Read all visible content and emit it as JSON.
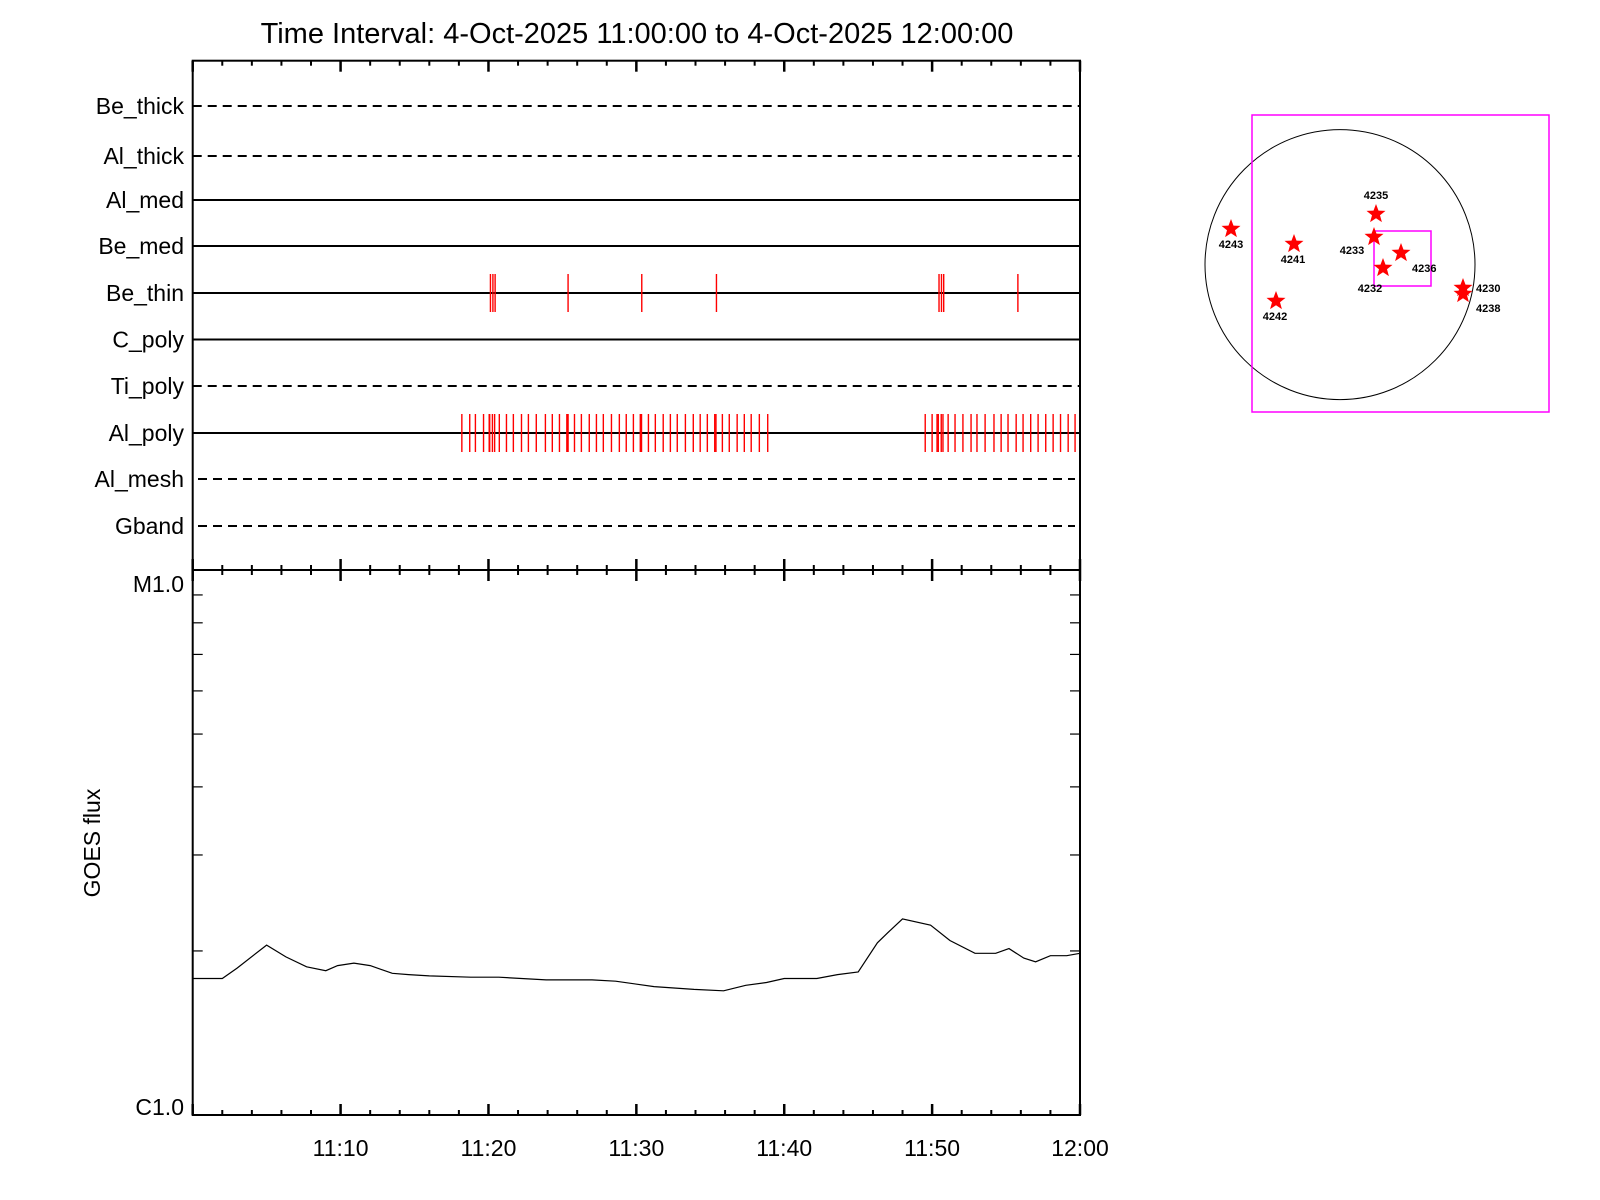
{
  "chart_data": [
    {
      "type": "event-timeline",
      "title": "Time Interval:  4-Oct-2025 11:00:00 to  4-Oct-2025 12:00:00",
      "xlim": [
        "11:00:00",
        "12:00:00"
      ],
      "event_color": "#ff0000",
      "rows": [
        {
          "name": "Be_thick",
          "style": "dashed",
          "events": []
        },
        {
          "name": "Al_thick",
          "style": "dashed",
          "events": []
        },
        {
          "name": "Al_med",
          "style": "solid",
          "events": []
        },
        {
          "name": "Be_med",
          "style": "solid",
          "events": []
        },
        {
          "name": "Be_thin",
          "style": "solid",
          "events": [
            "11:20:08",
            "11:20:18",
            "11:20:27",
            "11:25:23",
            "11:30:22",
            "11:35:25",
            "11:50:28",
            "11:50:38",
            "11:50:47",
            "11:55:48"
          ]
        },
        {
          "name": "C_poly",
          "style": "solid",
          "events": []
        },
        {
          "name": "Ti_poly",
          "style": "dashed",
          "events": []
        },
        {
          "name": "Al_poly",
          "style": "solid",
          "events": [
            "11:18:12",
            "11:18:44",
            "11:19:07",
            "11:19:40",
            "11:20:03",
            "11:20:05",
            "11:20:16",
            "11:20:25",
            "11:20:44",
            "11:21:13",
            "11:21:41",
            "11:22:14",
            "11:22:42",
            "11:23:14",
            "11:23:51",
            "11:24:19",
            "11:24:48",
            "11:25:18",
            "11:25:23",
            "11:25:49",
            "11:26:17",
            "11:26:49",
            "11:27:18",
            "11:27:46",
            "11:28:19",
            "11:28:51",
            "11:29:19",
            "11:29:48",
            "11:30:16",
            "11:30:21",
            "11:30:49",
            "11:31:17",
            "11:31:49",
            "11:32:18",
            "11:32:46",
            "11:33:19",
            "11:33:51",
            "11:34:19",
            "11:34:48",
            "11:35:18",
            "11:35:23",
            "11:35:49",
            "11:36:17",
            "11:36:49",
            "11:37:18",
            "11:37:46",
            "11:38:19",
            "11:38:53",
            "11:49:32",
            "11:50:00",
            "11:50:20",
            "11:50:25",
            "11:50:37",
            "11:50:44",
            "11:51:05",
            "11:51:33",
            "11:52:05",
            "11:52:38",
            "11:53:02",
            "11:53:35",
            "11:54:11",
            "11:54:40",
            "11:55:08",
            "11:55:41",
            "11:56:09",
            "11:56:40",
            "11:57:10",
            "11:57:41",
            "11:58:11",
            "11:58:41",
            "11:59:12",
            "11:59:40"
          ]
        },
        {
          "name": "Al_mesh",
          "style": "dashed",
          "events": []
        },
        {
          "name": "Gband",
          "style": "dashed",
          "events": []
        }
      ]
    },
    {
      "type": "line",
      "ylabel": "GOES flux",
      "yscale": "log",
      "ylim": [
        1e-06,
        1e-05
      ],
      "ytick_labels": [
        "C1.0",
        "M1.0"
      ],
      "xlim": [
        "11:00:00",
        "12:00:00"
      ],
      "xtick_labels": [
        "11:10",
        "11:20",
        "11:30",
        "11:40",
        "11:50",
        "12:00"
      ],
      "grid": false,
      "series": [
        {
          "color": "#000000",
          "x": [
            "11:00:00",
            "11:02:00",
            "11:03:00",
            "11:05:00",
            "11:06:18",
            "11:07:42",
            "11:09:00",
            "11:09:48",
            "11:10:54",
            "11:12:00",
            "11:13:30",
            "11:14:36",
            "11:16:00",
            "11:18:48",
            "11:20:42",
            "11:23:54",
            "11:27:00",
            "11:28:36",
            "11:31:12",
            "11:33:54",
            "11:35:54",
            "11:37:24",
            "11:38:48",
            "11:40:00",
            "11:42:12",
            "11:43:36",
            "11:45:00",
            "11:46:18",
            "11:47:00",
            "11:48:00",
            "11:49:54",
            "11:51:12",
            "11:52:54",
            "11:54:18",
            "11:55:12",
            "11:56:12",
            "11:57:00",
            "11:58:00",
            "11:59:06",
            "12:00:00"
          ],
          "y": [
            1.78e-06,
            1.78e-06,
            1.86e-06,
            2.05e-06,
            1.95e-06,
            1.87e-06,
            1.84e-06,
            1.88e-06,
            1.9e-06,
            1.88e-06,
            1.82e-06,
            1.81e-06,
            1.8e-06,
            1.79e-06,
            1.79e-06,
            1.77e-06,
            1.77e-06,
            1.76e-06,
            1.72e-06,
            1.7e-06,
            1.69e-06,
            1.73e-06,
            1.75e-06,
            1.78e-06,
            1.78e-06,
            1.81e-06,
            1.83e-06,
            2.07e-06,
            2.16e-06,
            2.29e-06,
            2.23e-06,
            2.09e-06,
            1.98e-06,
            1.98e-06,
            2.02e-06,
            1.94e-06,
            1.91e-06,
            1.96e-06,
            1.96e-06,
            1.98e-06
          ]
        }
      ]
    },
    {
      "type": "solar-disk-map",
      "box_color": "#ff00ff",
      "marker_color": "#ff0000",
      "regions": [
        "4243",
        "4241",
        "4235",
        "4233",
        "4236",
        "4232",
        "4242",
        "4230",
        "4238"
      ]
    }
  ]
}
